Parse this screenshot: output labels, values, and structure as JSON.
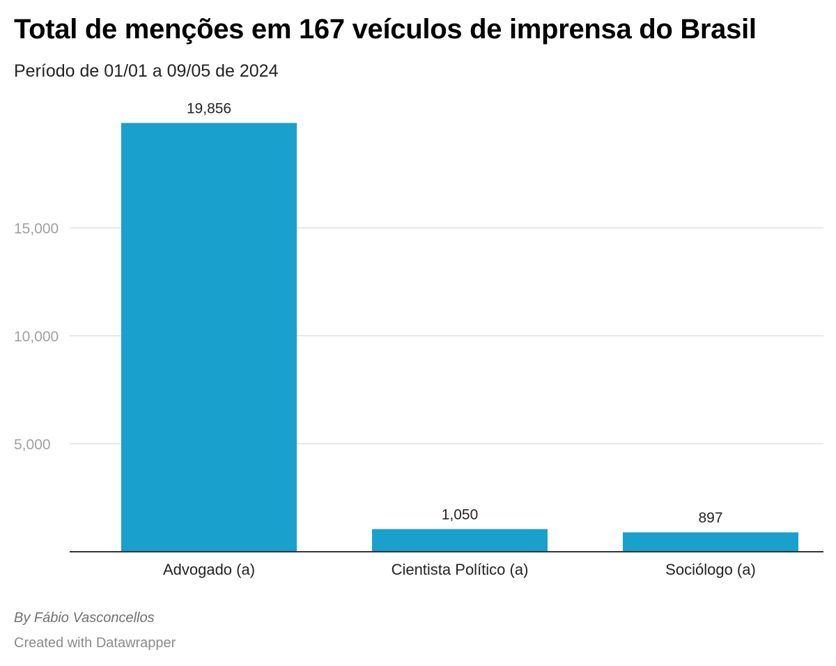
{
  "header": {
    "title": "Total de menções em 167 veículos de imprensa do Brasil",
    "subtitle": "Período de 01/01 a 09/05 de 2024"
  },
  "footer": {
    "byline": "By Fábio Vasconcellos",
    "credit": "Created with Datawrapper"
  },
  "colors": {
    "bar": "#1aa0cc",
    "gridline": "#e0e0e0",
    "axis": "#333333",
    "tick_label": "#a0a0a0",
    "value_label": "#222222"
  },
  "chart_data": {
    "type": "bar",
    "title": "Total de menções em 167 veículos de imprensa do Brasil",
    "subtitle": "Período de 01/01 a 09/05 de 2024",
    "categories": [
      "Advogado (a)",
      "Cientista Político (a)",
      "Sociólogo (a)"
    ],
    "values": [
      19856,
      1050,
      897
    ],
    "value_labels": [
      "19,856",
      "1,050",
      "897"
    ],
    "xlabel": "",
    "ylabel": "",
    "ylim": [
      0,
      20000
    ],
    "yticks": [
      5000,
      10000,
      15000
    ],
    "ytick_labels": [
      "5,000",
      "10,000",
      "15,000"
    ],
    "grid": true,
    "legend": "none"
  }
}
